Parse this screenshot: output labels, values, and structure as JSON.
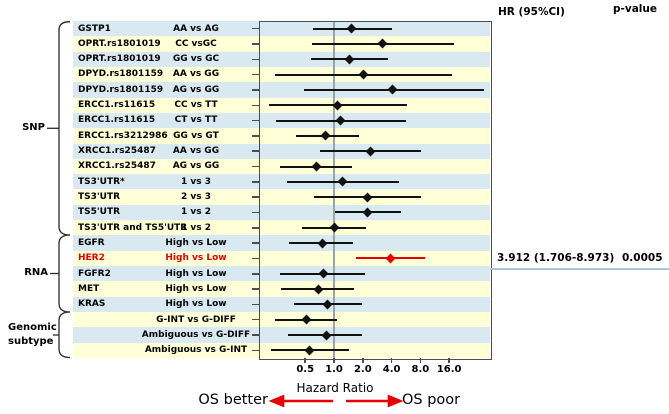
{
  "headers": {
    "hr_ci": "HR (95%CI)",
    "p_value": "p-value"
  },
  "groups": [
    {
      "label": "SNP"
    },
    {
      "label": "RNA"
    },
    {
      "label": "Genomic subtype"
    }
  ],
  "annotation": {
    "hr_text": "3.912 (1.706-8.973)",
    "p_text": "0.0005"
  },
  "footer": {
    "os_better": "OS better",
    "os_poor": "OS poor"
  },
  "colors": {
    "stripe_blue": "#d9e9f2",
    "stripe_yellow": "#ffffd8",
    "highlight_red": "#e60000",
    "reference_line": "#9aa4a6",
    "annotation_underline": "#a9c7d8"
  },
  "chart_data": {
    "type": "forest",
    "xlabel": "Hazard Ratio",
    "x_scale": "log2",
    "x_axis_ticks": [
      {
        "v": 0.5,
        "label": "0.5"
      },
      {
        "v": 1.0,
        "label": "1.0"
      },
      {
        "v": 2.0,
        "label": "2.0"
      },
      {
        "v": 4.0,
        "label": "4.0"
      },
      {
        "v": 8.0,
        "label": "8.0"
      },
      {
        "v": 16.0,
        "label": "16.0"
      }
    ],
    "rows": [
      {
        "group": "SNP",
        "name": "GSTP1",
        "comparison": "AA vs AG",
        "hr": 1.53,
        "ci_low": 0.61,
        "ci_high": 4.01,
        "highlight": false
      },
      {
        "group": "SNP",
        "name": "OPRT.rs1801019",
        "comparison": "CC vsGC",
        "hr": 3.2,
        "ci_low": 0.59,
        "ci_high": 17.8,
        "highlight": false
      },
      {
        "group": "SNP",
        "name": "OPRT.rs1801019",
        "comparison": "GG vs GC",
        "hr": 1.44,
        "ci_low": 0.57,
        "ci_high": 3.7,
        "highlight": false
      },
      {
        "group": "SNP",
        "name": "DPYD.rs1801159",
        "comparison": "AA vs GG",
        "hr": 2.02,
        "ci_low": 0.24,
        "ci_high": 17.0,
        "highlight": false
      },
      {
        "group": "SNP",
        "name": "DPYD.rs1801159",
        "comparison": "AG vs GG",
        "hr": 4.04,
        "ci_low": 0.49,
        "ci_high": 37.0,
        "highlight": false
      },
      {
        "group": "SNP",
        "name": "ERCC1.rs11615",
        "comparison": "CC vs TT",
        "hr": 1.08,
        "ci_low": 0.21,
        "ci_high": 5.75,
        "highlight": false
      },
      {
        "group": "SNP",
        "name": "ERCC1.rs11615",
        "comparison": "CT vs TT",
        "hr": 1.18,
        "ci_low": 0.25,
        "ci_high": 5.62,
        "highlight": false
      },
      {
        "group": "SNP",
        "name": "ERCC1.rs3212986",
        "comparison": "GG vs GT",
        "hr": 0.82,
        "ci_low": 0.4,
        "ci_high": 1.83,
        "highlight": false
      },
      {
        "group": "SNP",
        "name": "XRCC1.rs25487",
        "comparison": "AA vs GG",
        "hr": 2.38,
        "ci_low": 0.71,
        "ci_high": 8.06,
        "highlight": false
      },
      {
        "group": "SNP",
        "name": "XRCC1.rs25487",
        "comparison": "AG vs GG",
        "hr": 0.66,
        "ci_low": 0.27,
        "ci_high": 1.53,
        "highlight": false
      },
      {
        "group": "SNP",
        "name": "TS3'UTR*",
        "comparison": "1 vs 3",
        "hr": 1.23,
        "ci_low": 0.32,
        "ci_high": 4.78,
        "highlight": false
      },
      {
        "group": "SNP",
        "name": "TS3'UTR",
        "comparison": "2 vs 3",
        "hr": 2.23,
        "ci_low": 0.62,
        "ci_high": 8.06,
        "highlight": false
      },
      {
        "group": "SNP",
        "name": "TS5'UTR",
        "comparison": "1 vs 2",
        "hr": 2.23,
        "ci_low": 1.02,
        "ci_high": 4.98,
        "highlight": false
      },
      {
        "group": "SNP",
        "name": "TS3'UTR and TS5'UTR",
        "comparison": "1 vs 2",
        "hr": 1.0,
        "ci_low": 0.46,
        "ci_high": 2.14,
        "highlight": false
      },
      {
        "group": "RNA",
        "name": "EGFR",
        "comparison": "High vs Low",
        "hr": 0.75,
        "ci_low": 0.34,
        "ci_high": 1.59,
        "highlight": false
      },
      {
        "group": "RNA",
        "name": "HER2",
        "comparison": "High vs Low",
        "hr": 3.912,
        "ci_low": 1.706,
        "ci_high": 8.973,
        "highlight": true,
        "hr_label": "3.912 (1.706-8.973)",
        "p_value": "0.0005"
      },
      {
        "group": "RNA",
        "name": "FGFR2",
        "comparison": "High vs Low",
        "hr": 0.77,
        "ci_low": 0.27,
        "ci_high": 2.11,
        "highlight": false
      },
      {
        "group": "RNA",
        "name": "MET",
        "comparison": "High vs Low",
        "hr": 0.69,
        "ci_low": 0.28,
        "ci_high": 1.62,
        "highlight": false
      },
      {
        "group": "RNA",
        "name": "KRAS",
        "comparison": "High vs Low",
        "hr": 0.86,
        "ci_low": 0.38,
        "ci_high": 1.98,
        "highlight": false
      },
      {
        "group": "Genomic subtype",
        "name": "",
        "comparison": "G-INT vs G-DIFF",
        "hr": 0.52,
        "ci_low": 0.24,
        "ci_high": 1.08,
        "highlight": false
      },
      {
        "group": "Genomic subtype",
        "name": "",
        "comparison": "Ambiguous vs G-DIFF",
        "hr": 0.84,
        "ci_low": 0.33,
        "ci_high": 1.98,
        "highlight": false
      },
      {
        "group": "Genomic subtype",
        "name": "",
        "comparison": "Ambiguous vs G-INT",
        "hr": 0.55,
        "ci_low": 0.22,
        "ci_high": 1.44,
        "highlight": false
      }
    ]
  }
}
